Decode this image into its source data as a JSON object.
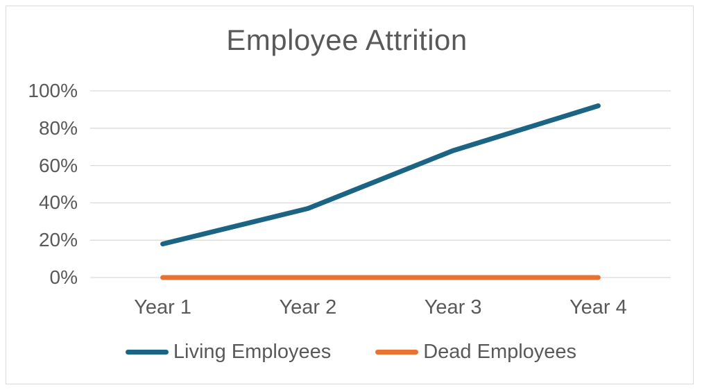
{
  "chart_data": {
    "type": "line",
    "title": "Employee Attrition",
    "categories": [
      "Year 1",
      "Year 2",
      "Year 3",
      "Year 4"
    ],
    "series": [
      {
        "name": "Living Employees",
        "values": [
          18,
          37,
          68,
          92
        ],
        "color": "#1B6484"
      },
      {
        "name": "Dead Employees",
        "values": [
          0,
          0,
          0,
          0
        ],
        "color": "#E97132"
      }
    ],
    "ylim": [
      0,
      100
    ],
    "yticks": [
      100,
      80,
      60,
      40,
      20,
      0
    ],
    "ytick_labels": [
      "100%",
      "80%",
      "60%",
      "40%",
      "20%",
      "0%"
    ],
    "xlabel": "",
    "ylabel": "",
    "grid": "horizontal",
    "legend_position": "bottom",
    "colors": {
      "title_text": "#595959",
      "axis_text": "#595959",
      "gridline": "#D9D9D9",
      "chart_border": "#D9D9D9",
      "background": "#FFFFFF"
    }
  }
}
